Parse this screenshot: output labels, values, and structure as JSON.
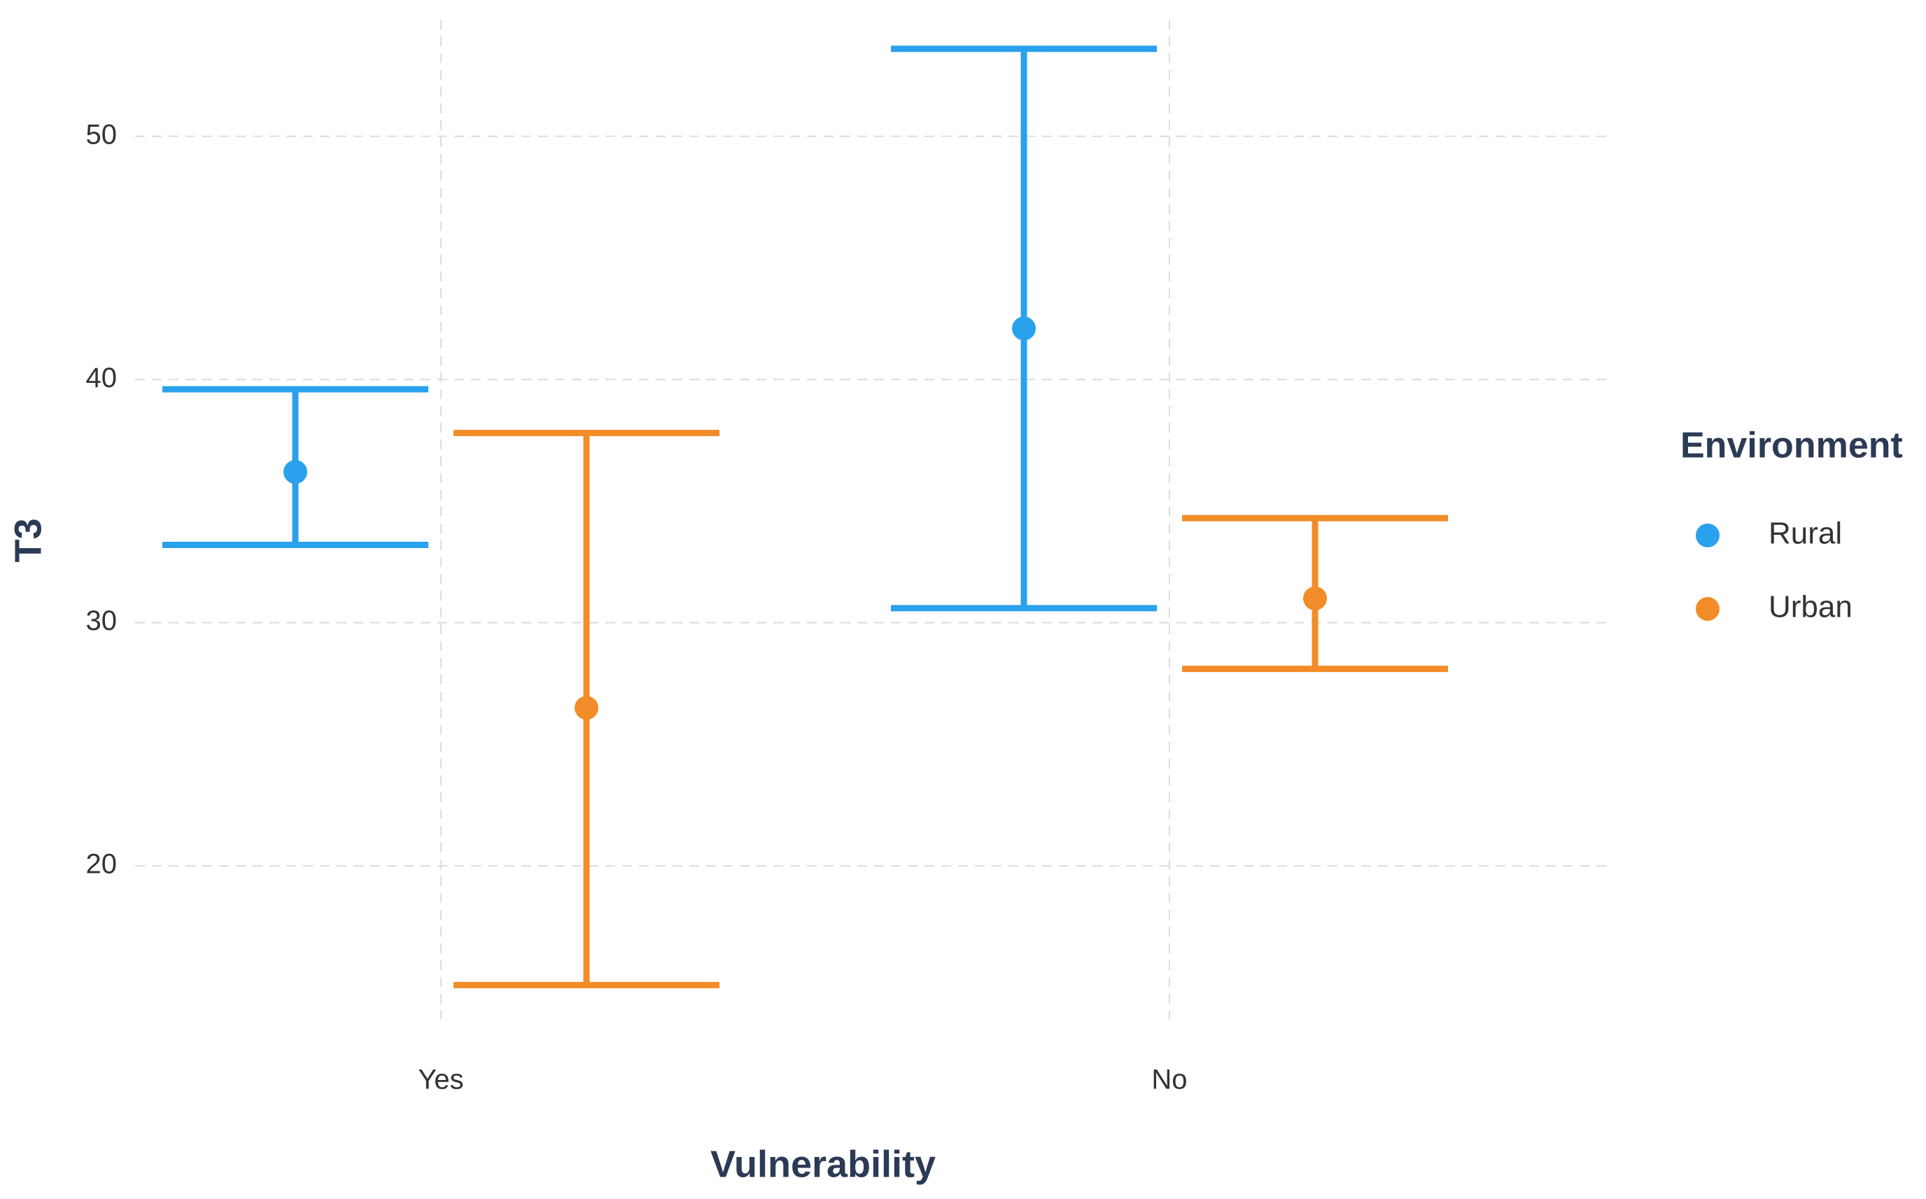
{
  "chart_data": {
    "type": "errorbar",
    "x_label": "Vulnerability",
    "y_label": "T3",
    "categories": [
      "Yes",
      "No"
    ],
    "series": [
      {
        "name": "Rural",
        "color": "#2aa1ec",
        "values": [
          36.2,
          42.1
        ],
        "lower": [
          33.2,
          30.6
        ],
        "upper": [
          39.6,
          53.6
        ]
      },
      {
        "name": "Urban",
        "color": "#f28c28",
        "values": [
          26.5,
          31.0
        ],
        "lower": [
          15.1,
          28.1
        ],
        "upper": [
          37.8,
          34.3
        ]
      }
    ],
    "ylim": [
      13.7,
      54.8
    ],
    "yticks": [
      20,
      30,
      40,
      50
    ],
    "grid": true,
    "legend_title": "Environment",
    "legend": "right"
  }
}
